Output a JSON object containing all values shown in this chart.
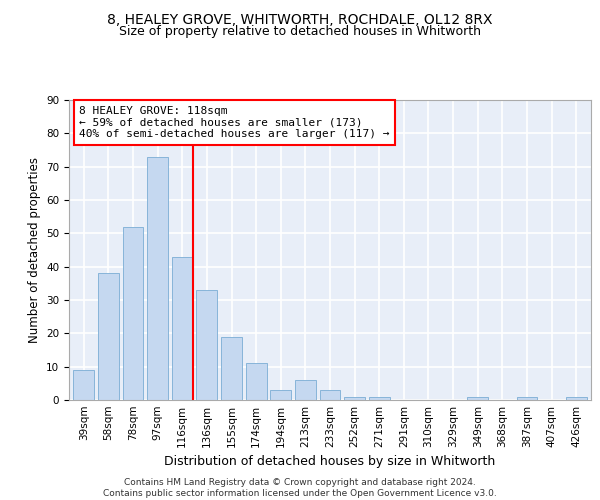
{
  "title": "8, HEALEY GROVE, WHITWORTH, ROCHDALE, OL12 8RX",
  "subtitle": "Size of property relative to detached houses in Whitworth",
  "xlabel": "Distribution of detached houses by size in Whitworth",
  "ylabel": "Number of detached properties",
  "categories": [
    "39sqm",
    "58sqm",
    "78sqm",
    "97sqm",
    "116sqm",
    "136sqm",
    "155sqm",
    "174sqm",
    "194sqm",
    "213sqm",
    "233sqm",
    "252sqm",
    "271sqm",
    "291sqm",
    "310sqm",
    "329sqm",
    "349sqm",
    "368sqm",
    "387sqm",
    "407sqm",
    "426sqm"
  ],
  "values": [
    9,
    38,
    52,
    73,
    43,
    33,
    19,
    11,
    3,
    6,
    3,
    1,
    1,
    0,
    0,
    0,
    1,
    0,
    1,
    0,
    1
  ],
  "bar_color": "#c5d8f0",
  "bar_edge_color": "#7aadd4",
  "annotation_line1": "8 HEALEY GROVE: 118sqm",
  "annotation_line2": "← 59% of detached houses are smaller (173)",
  "annotation_line3": "40% of semi-detached houses are larger (117) →",
  "red_line_x": 4.45,
  "ylim": [
    0,
    90
  ],
  "yticks": [
    0,
    10,
    20,
    30,
    40,
    50,
    60,
    70,
    80,
    90
  ],
  "footer_line1": "Contains HM Land Registry data © Crown copyright and database right 2024.",
  "footer_line2": "Contains public sector information licensed under the Open Government Licence v3.0.",
  "background_color": "#e8eef8",
  "grid_color": "#ffffff",
  "title_fontsize": 10,
  "subtitle_fontsize": 9,
  "axis_label_fontsize": 8.5,
  "tick_fontsize": 7.5,
  "annotation_fontsize": 8,
  "footer_fontsize": 6.5
}
